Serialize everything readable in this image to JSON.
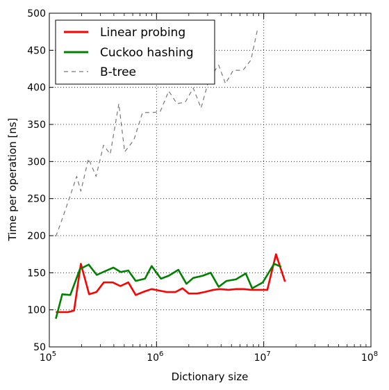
{
  "chart_data": {
    "type": "line",
    "xlabel": "Dictionary size",
    "ylabel": "Time per operation [ns]",
    "x_scale": "log",
    "xlim": [
      100000,
      100000000
    ],
    "ylim": [
      50,
      500
    ],
    "x_ticks": [
      {
        "value": 100000,
        "base": "10",
        "exp": "5"
      },
      {
        "value": 1000000,
        "base": "10",
        "exp": "6"
      },
      {
        "value": 10000000,
        "base": "10",
        "exp": "7"
      },
      {
        "value": 100000000,
        "base": "10",
        "exp": "8"
      }
    ],
    "y_ticks": [
      50,
      100,
      150,
      200,
      250,
      300,
      350,
      400,
      450,
      500
    ],
    "grid": true,
    "legend_position": "top-left",
    "series": [
      {
        "name": "Linear probing",
        "color": "#ff0000",
        "style": "solid",
        "points": [
          [
            115000,
            97
          ],
          [
            132000,
            97
          ],
          [
            150000,
            97
          ],
          [
            170000,
            99
          ],
          [
            197000,
            162
          ],
          [
            235000,
            121
          ],
          [
            275000,
            124
          ],
          [
            322000,
            137
          ],
          [
            390000,
            137
          ],
          [
            460000,
            132
          ],
          [
            545000,
            137
          ],
          [
            640000,
            120
          ],
          [
            780000,
            125
          ],
          [
            900000,
            128
          ],
          [
            1050000,
            126
          ],
          [
            1250000,
            124
          ],
          [
            1500000,
            124
          ],
          [
            1750000,
            129
          ],
          [
            2000000,
            122
          ],
          [
            2400000,
            122
          ],
          [
            2800000,
            124
          ],
          [
            3400000,
            127
          ],
          [
            3900000,
            128
          ],
          [
            4700000,
            127
          ],
          [
            5500000,
            128
          ],
          [
            6500000,
            128
          ],
          [
            7600000,
            127
          ],
          [
            9100000,
            127
          ],
          [
            10800000,
            127
          ],
          [
            13000000,
            175
          ],
          [
            15800000,
            138
          ]
        ]
      },
      {
        "name": "Cuckoo hashing",
        "color": "#008000",
        "style": "solid",
        "points": [
          [
            115000,
            88
          ],
          [
            132000,
            121
          ],
          [
            157000,
            120
          ],
          [
            193000,
            155
          ],
          [
            233000,
            161
          ],
          [
            277000,
            147
          ],
          [
            330000,
            152
          ],
          [
            395000,
            157
          ],
          [
            463000,
            151
          ],
          [
            545000,
            153
          ],
          [
            640000,
            139
          ],
          [
            780000,
            142
          ],
          [
            900000,
            159
          ],
          [
            1100000,
            142
          ],
          [
            1300000,
            146
          ],
          [
            1600000,
            154
          ],
          [
            1900000,
            135
          ],
          [
            2200000,
            143
          ],
          [
            2700000,
            146
          ],
          [
            3200000,
            150
          ],
          [
            3800000,
            131
          ],
          [
            4500000,
            139
          ],
          [
            5500000,
            141
          ],
          [
            6800000,
            149
          ],
          [
            7800000,
            129
          ],
          [
            9800000,
            137
          ],
          [
            12500000,
            162
          ],
          [
            14600000,
            158
          ]
        ]
      },
      {
        "name": "B-tree",
        "color": "#777777",
        "style": "dashed",
        "points": [
          [
            115000,
            199
          ],
          [
            130000,
            220
          ],
          [
            155000,
            252
          ],
          [
            180000,
            280
          ],
          [
            197000,
            260
          ],
          [
            232000,
            304
          ],
          [
            273000,
            280
          ],
          [
            320000,
            322
          ],
          [
            370000,
            310
          ],
          [
            445000,
            378
          ],
          [
            505000,
            313
          ],
          [
            615000,
            329
          ],
          [
            740000,
            366
          ],
          [
            900000,
            366
          ],
          [
            1080000,
            367
          ],
          [
            1300000,
            395
          ],
          [
            1550000,
            378
          ],
          [
            1850000,
            380
          ],
          [
            2200000,
            399
          ],
          [
            2600000,
            372
          ],
          [
            3100000,
            412
          ],
          [
            3800000,
            430
          ],
          [
            4400000,
            405
          ],
          [
            5200000,
            423
          ],
          [
            6400000,
            423
          ],
          [
            7600000,
            437
          ],
          [
            8800000,
            480
          ]
        ]
      }
    ]
  }
}
